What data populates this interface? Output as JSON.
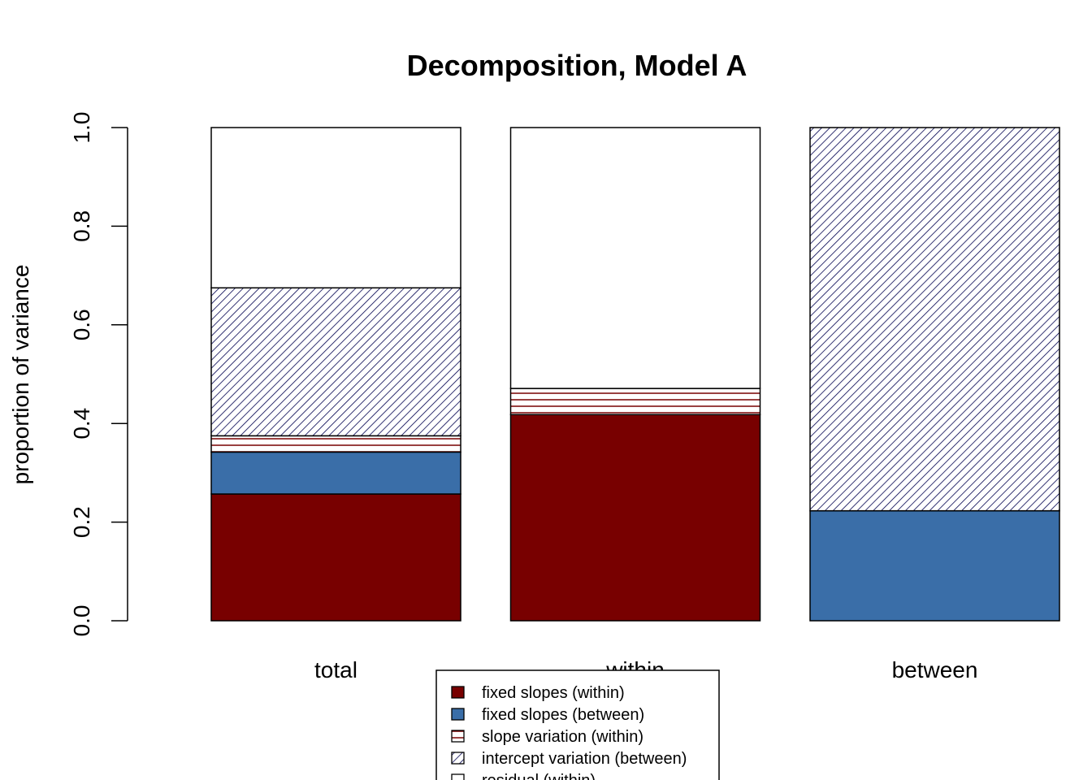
{
  "chart_data": {
    "type": "bar",
    "stacked": true,
    "title": "Decomposition, Model A",
    "xlabel": "",
    "ylabel": "proportion of variance",
    "ylim": [
      0,
      1
    ],
    "yticks": [
      "0.0",
      "0.2",
      "0.4",
      "0.6",
      "0.8",
      "1.0"
    ],
    "categories": [
      "total",
      "within",
      "between"
    ],
    "series": [
      {
        "name": "fixed slopes (within)",
        "fill": "#780000",
        "pattern": "none",
        "values": [
          0.257,
          0.418,
          0.0
        ]
      },
      {
        "name": "fixed slopes (between)",
        "fill": "#3a6ea8",
        "pattern": "none",
        "values": [
          0.085,
          0.0,
          0.223
        ]
      },
      {
        "name": "slope variation (within)",
        "fill": "#ffffff",
        "pattern": "horizontal",
        "pattern_color": "#780000",
        "values": [
          0.033,
          0.053,
          0.0
        ]
      },
      {
        "name": "intercept variation (between)",
        "fill": "#ffffff",
        "pattern": "diagonal",
        "pattern_color": "#00004f",
        "values": [
          0.3,
          0.0,
          0.777
        ]
      },
      {
        "name": "residual (within)",
        "fill": "#ffffff",
        "pattern": "none",
        "values": [
          0.325,
          0.529,
          0.0
        ]
      }
    ],
    "legend": {
      "position": "bottom-center"
    },
    "grid": false
  }
}
